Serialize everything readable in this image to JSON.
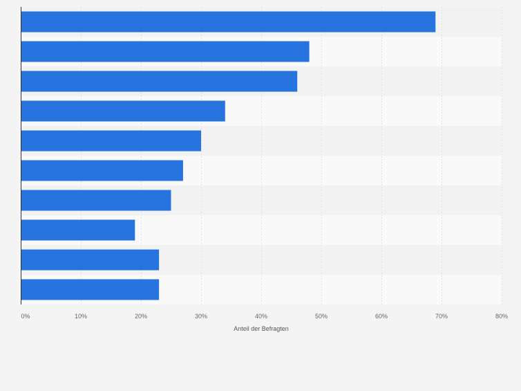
{
  "chart_data": {
    "type": "bar",
    "orientation": "horizontal",
    "title": "",
    "xlabel": "Anteil der Befragten",
    "ylabel": "",
    "categories": [
      "",
      "",
      "",
      "",
      "",
      "",
      "",
      "",
      "",
      ""
    ],
    "values": [
      69,
      48,
      46,
      34,
      30,
      27,
      25,
      19,
      23,
      23
    ],
    "xlim": [
      0,
      80
    ],
    "ticks": [
      0,
      10,
      20,
      30,
      40,
      50,
      60,
      70,
      80
    ],
    "tick_labels": [
      "0%",
      "10%",
      "20%",
      "30%",
      "40%",
      "50%",
      "60%",
      "70%",
      "80%"
    ],
    "grid": true,
    "bar_color": "#2874de"
  }
}
